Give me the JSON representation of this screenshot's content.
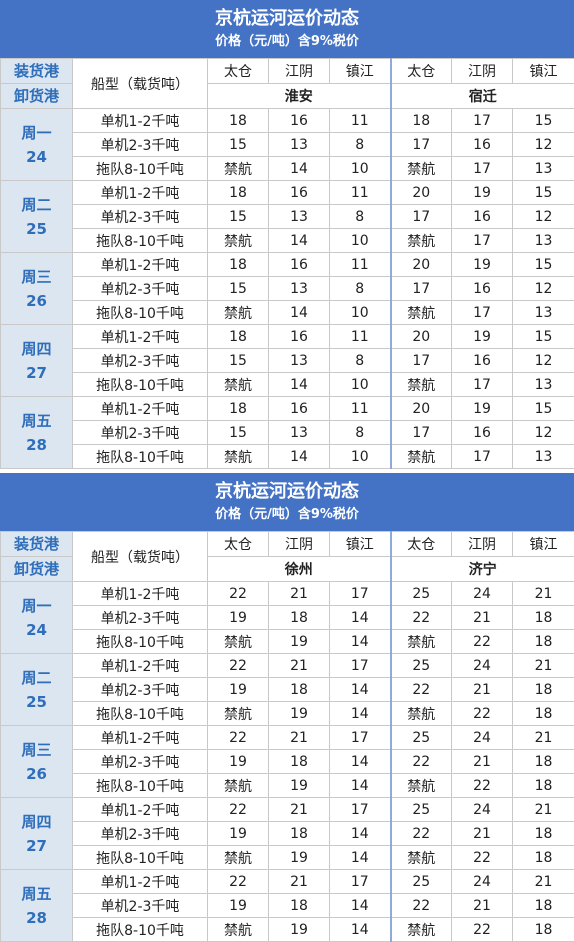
{
  "tables": [
    {
      "title": "京杭运河运价动态",
      "subtitle": "价格（元/吨）含9%税价",
      "load_label": "装货港",
      "unload_label": "卸货港",
      "ship_type_label": "船型（载货吨）",
      "destinations": [
        {
          "name": "淮安",
          "ports": [
            "太仓",
            "江阴",
            "镇江"
          ]
        },
        {
          "name": "宿迁",
          "ports": [
            "太仓",
            "江阴",
            "镇江"
          ]
        }
      ],
      "days": [
        {
          "day": "周一",
          "date": "24",
          "rows": [
            {
              "ship": "单机1-2千吨",
              "prices": [
                18,
                16,
                11,
                18,
                17,
                15
              ]
            },
            {
              "ship": "单机2-3千吨",
              "prices": [
                15,
                13,
                8,
                17,
                16,
                12
              ]
            },
            {
              "ship": "拖队8-10千吨",
              "prices": [
                "禁航",
                14,
                10,
                "禁航",
                17,
                13
              ]
            }
          ]
        },
        {
          "day": "周二",
          "date": "25",
          "rows": [
            {
              "ship": "单机1-2千吨",
              "prices": [
                18,
                16,
                11,
                20,
                19,
                15
              ]
            },
            {
              "ship": "单机2-3千吨",
              "prices": [
                15,
                13,
                8,
                17,
                16,
                12
              ]
            },
            {
              "ship": "拖队8-10千吨",
              "prices": [
                "禁航",
                14,
                10,
                "禁航",
                17,
                13
              ]
            }
          ]
        },
        {
          "day": "周三",
          "date": "26",
          "rows": [
            {
              "ship": "单机1-2千吨",
              "prices": [
                18,
                16,
                11,
                20,
                19,
                15
              ]
            },
            {
              "ship": "单机2-3千吨",
              "prices": [
                15,
                13,
                8,
                17,
                16,
                12
              ]
            },
            {
              "ship": "拖队8-10千吨",
              "prices": [
                "禁航",
                14,
                10,
                "禁航",
                17,
                13
              ]
            }
          ]
        },
        {
          "day": "周四",
          "date": "27",
          "rows": [
            {
              "ship": "单机1-2千吨",
              "prices": [
                18,
                16,
                11,
                20,
                19,
                15
              ]
            },
            {
              "ship": "单机2-3千吨",
              "prices": [
                15,
                13,
                8,
                17,
                16,
                12
              ]
            },
            {
              "ship": "拖队8-10千吨",
              "prices": [
                "禁航",
                14,
                10,
                "禁航",
                17,
                13
              ]
            }
          ]
        },
        {
          "day": "周五",
          "date": "28",
          "rows": [
            {
              "ship": "单机1-2千吨",
              "prices": [
                18,
                16,
                11,
                20,
                19,
                15
              ]
            },
            {
              "ship": "单机2-3千吨",
              "prices": [
                15,
                13,
                8,
                17,
                16,
                12
              ]
            },
            {
              "ship": "拖队8-10千吨",
              "prices": [
                "禁航",
                14,
                10,
                "禁航",
                17,
                13
              ]
            }
          ]
        }
      ]
    },
    {
      "title": "京杭运河运价动态",
      "subtitle": "价格（元/吨）含9%税价",
      "load_label": "装货港",
      "unload_label": "卸货港",
      "ship_type_label": "船型（载货吨）",
      "destinations": [
        {
          "name": "徐州",
          "ports": [
            "太仓",
            "江阴",
            "镇江"
          ]
        },
        {
          "name": "济宁",
          "ports": [
            "太仓",
            "江阴",
            "镇江"
          ]
        }
      ],
      "days": [
        {
          "day": "周一",
          "date": "24",
          "rows": [
            {
              "ship": "单机1-2千吨",
              "prices": [
                22,
                21,
                17,
                25,
                24,
                21
              ]
            },
            {
              "ship": "单机2-3千吨",
              "prices": [
                19,
                18,
                14,
                22,
                21,
                18
              ]
            },
            {
              "ship": "拖队8-10千吨",
              "prices": [
                "禁航",
                19,
                14,
                "禁航",
                22,
                18
              ]
            }
          ]
        },
        {
          "day": "周二",
          "date": "25",
          "rows": [
            {
              "ship": "单机1-2千吨",
              "prices": [
                22,
                21,
                17,
                25,
                24,
                21
              ]
            },
            {
              "ship": "单机2-3千吨",
              "prices": [
                19,
                18,
                14,
                22,
                21,
                18
              ]
            },
            {
              "ship": "拖队8-10千吨",
              "prices": [
                "禁航",
                19,
                14,
                "禁航",
                22,
                18
              ]
            }
          ]
        },
        {
          "day": "周三",
          "date": "26",
          "rows": [
            {
              "ship": "单机1-2千吨",
              "prices": [
                22,
                21,
                17,
                25,
                24,
                21
              ]
            },
            {
              "ship": "单机2-3千吨",
              "prices": [
                19,
                18,
                14,
                22,
                21,
                18
              ]
            },
            {
              "ship": "拖队8-10千吨",
              "prices": [
                "禁航",
                19,
                14,
                "禁航",
                22,
                18
              ]
            }
          ]
        },
        {
          "day": "周四",
          "date": "27",
          "rows": [
            {
              "ship": "单机1-2千吨",
              "prices": [
                22,
                21,
                17,
                25,
                24,
                21
              ]
            },
            {
              "ship": "单机2-3千吨",
              "prices": [
                19,
                18,
                14,
                22,
                21,
                18
              ]
            },
            {
              "ship": "拖队8-10千吨",
              "prices": [
                "禁航",
                19,
                14,
                "禁航",
                22,
                18
              ]
            }
          ]
        },
        {
          "day": "周五",
          "date": "28",
          "rows": [
            {
              "ship": "单机1-2千吨",
              "prices": [
                22,
                21,
                17,
                25,
                24,
                21
              ]
            },
            {
              "ship": "单机2-3千吨",
              "prices": [
                19,
                18,
                14,
                22,
                21,
                18
              ]
            },
            {
              "ship": "拖队8-10千吨",
              "prices": [
                "禁航",
                19,
                14,
                "禁航",
                22,
                18
              ]
            }
          ]
        }
      ]
    }
  ]
}
